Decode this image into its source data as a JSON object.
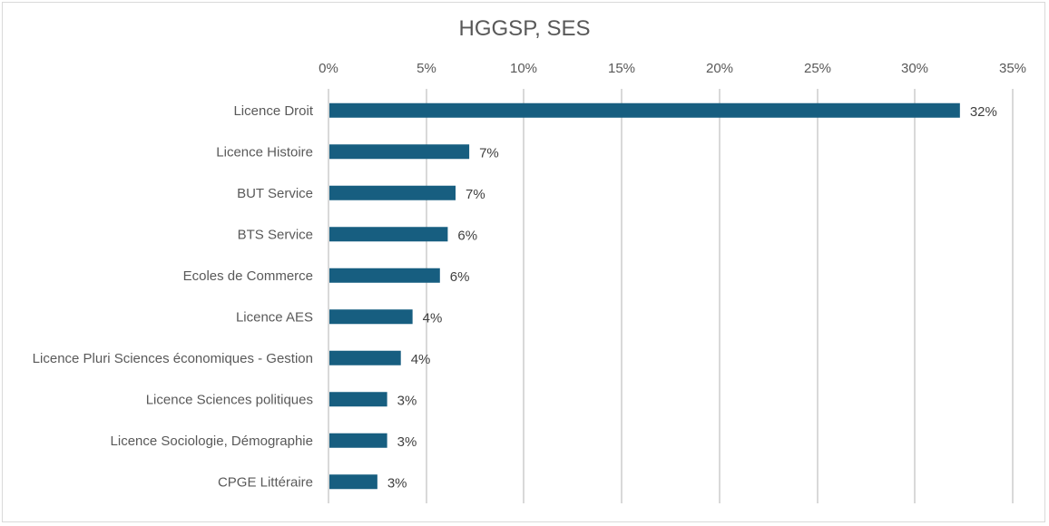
{
  "chart_data": {
    "type": "bar",
    "orientation": "horizontal",
    "title": "HGGSP, SES",
    "xlabel": "",
    "ylabel": "",
    "xlim": [
      0,
      35
    ],
    "x_ticks": [
      0,
      5,
      10,
      15,
      20,
      25,
      30,
      35
    ],
    "x_tick_labels": [
      "0%",
      "5%",
      "10%",
      "15%",
      "20%",
      "25%",
      "30%",
      "35%"
    ],
    "x_axis_position": "top",
    "grid": true,
    "legend": "none",
    "bar_color": "#175e80",
    "categories": [
      "Licence Droit",
      "Licence Histoire",
      "BUT Service",
      "BTS Service",
      "Ecoles de Commerce",
      "Licence AES",
      "Licence Pluri Sciences économiques - Gestion",
      "Licence Sciences politiques",
      "Licence Sociologie, Démographie",
      "CPGE Littéraire"
    ],
    "values": [
      32.3,
      7.2,
      6.5,
      6.1,
      5.7,
      4.3,
      3.7,
      3.0,
      3.0,
      2.5
    ],
    "data_labels": [
      "32%",
      "7%",
      "7%",
      "6%",
      "6%",
      "4%",
      "4%",
      "3%",
      "3%",
      "3%"
    ]
  }
}
